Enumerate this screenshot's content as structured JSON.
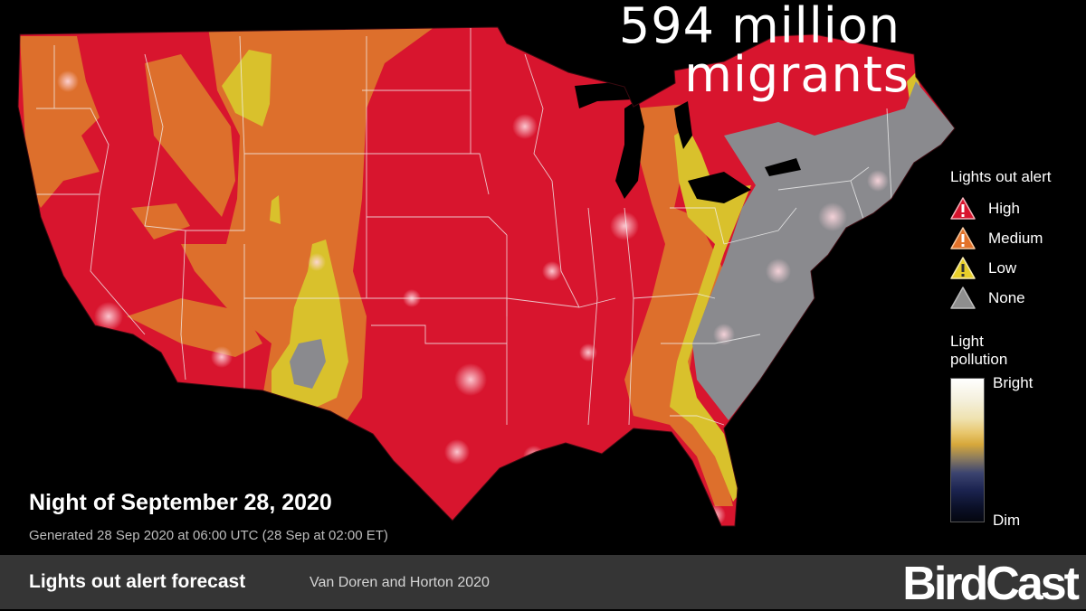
{
  "headline": {
    "line1": "594 million",
    "line2": "migrants"
  },
  "legend": {
    "title": "Lights out alert",
    "items": [
      {
        "label": "High",
        "color": "#d8152e",
        "icon": "warning-icon"
      },
      {
        "label": "Medium",
        "color": "#e2722a",
        "icon": "warning-icon"
      },
      {
        "label": "Low",
        "color": "#e8cf2a",
        "icon": "warning-icon"
      },
      {
        "label": "None",
        "color": "#8e8e8e",
        "icon": "triangle-icon"
      }
    ]
  },
  "light_pollution": {
    "title_line1": "Light",
    "title_line2": "pollution",
    "bright": "Bright",
    "dim": "Dim"
  },
  "night": "Night of September 28, 2020",
  "generated": "Generated 28 Sep 2020 at 06:00 UTC (28 Sep at 02:00 ET)",
  "footer": {
    "title": "Lights out alert forecast",
    "citation": "Van Doren and Horton 2020",
    "logo": "BirdCast"
  },
  "colors": {
    "high": "#d8152e",
    "medium": "#dd6f2c",
    "low": "#d9c12c",
    "none": "#8a8a8e",
    "border": "#ffffff"
  }
}
